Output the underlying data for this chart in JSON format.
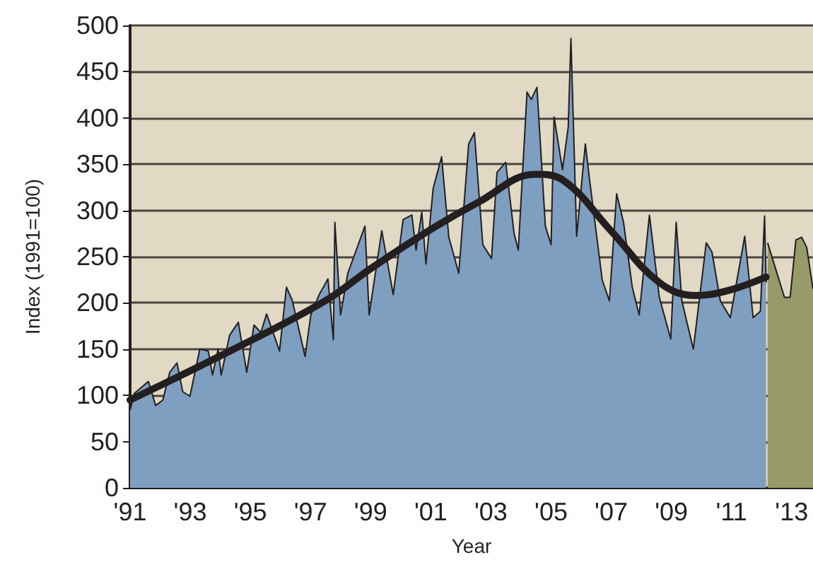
{
  "chart_data": {
    "type": "area",
    "xlabel": "Year",
    "ylabel": "Index (1991=100)",
    "xlim": [
      1991,
      2013.71
    ],
    "ylim": [
      0,
      500
    ],
    "xticks": [
      {
        "value": 1991,
        "label": "'91"
      },
      {
        "value": 1993,
        "label": "'93"
      },
      {
        "value": 1995,
        "label": "'95"
      },
      {
        "value": 1997,
        "label": "'97"
      },
      {
        "value": 1999,
        "label": "'99"
      },
      {
        "value": 2001,
        "label": "'01"
      },
      {
        "value": 2003,
        "label": "'03"
      },
      {
        "value": 2005,
        "label": "'05"
      },
      {
        "value": 2007,
        "label": "'07"
      },
      {
        "value": 2009,
        "label": "'09"
      },
      {
        "value": 2011,
        "label": "'11"
      },
      {
        "value": 2013,
        "label": "'13"
      }
    ],
    "yticks": [
      0,
      50,
      100,
      150,
      200,
      250,
      300,
      350,
      400,
      450,
      500
    ],
    "grid": "y",
    "marker": "none",
    "line_style": "solid",
    "series": [
      {
        "color": "#7f9fc0",
        "x": [
          1991,
          1991.14,
          1991.61,
          1991.85,
          1992.09,
          1992.32,
          1992.56,
          1992.75,
          1992.99,
          1993.32,
          1993.6,
          1993.74,
          1993.93,
          1994.03,
          1994.31,
          1994.6,
          1994.88,
          1995.12,
          1995.35,
          1995.54,
          1995.97,
          1996.2,
          1996.39,
          1996.82,
          1997.01,
          1997.29,
          1997.58,
          1997.76,
          1997.81,
          1998,
          1998.24,
          1998.81,
          1998.95,
          1999.37,
          1999.75,
          2000.08,
          2000.37,
          2000.51,
          2000.7,
          2000.84,
          2001.08,
          2001.36,
          2001.6,
          2001.93,
          2002.26,
          2002.45,
          2002.73,
          2003.02,
          2003.2,
          2003.49,
          2003.77,
          2003.91,
          2004.2,
          2004.34,
          2004.53,
          2004.81,
          2005,
          2005.1,
          2005.38,
          2005.57,
          2005.66,
          2005.85,
          2006.14,
          2006.28,
          2006.7,
          2006.94,
          2007.18,
          2007.41,
          2007.7,
          2007.93,
          2008.27,
          2008.6,
          2008.98,
          2009.16,
          2009.35,
          2009.73,
          2010.16,
          2010.35,
          2010.63,
          2010.96,
          2011.44,
          2011.72,
          2011.96,
          2012.1,
          2012.15
        ],
        "values": [
          84,
          102,
          115,
          89,
          95,
          125,
          135,
          104,
          99,
          150,
          148,
          122,
          150,
          122,
          165,
          179,
          125,
          176,
          168,
          188,
          148,
          217,
          203,
          142,
          187,
          209,
          226,
          160,
          287,
          187,
          232,
          283,
          187,
          278,
          209,
          290,
          295,
          257,
          298,
          242,
          324,
          358,
          271,
          232,
          372,
          384,
          263,
          248,
          341,
          352,
          275,
          257,
          428,
          420,
          433,
          283,
          263,
          401,
          344,
          390,
          486,
          272,
          372,
          333,
          225,
          202,
          318,
          287,
          217,
          187,
          295,
          206,
          161,
          287,
          202,
          150,
          265,
          255,
          202,
          184,
          272,
          184,
          191,
          294,
          222
        ]
      },
      {
        "type": "area",
        "color": "#979a69",
        "x": [
          2012.2,
          2012.76,
          2012.95,
          2013.14,
          2013.33,
          2013.5,
          2013.71
        ],
        "values": [
          265,
          206,
          206,
          268,
          271,
          260,
          215
        ]
      },
      {
        "type": "line",
        "color": "#231f20",
        "x": [
          1991,
          1994.45,
          1997.48,
          1999,
          2001.03,
          2002.59,
          2004.48,
          2005.43,
          2006.99,
          2008.6,
          2009.83,
          2010.96,
          2012.15
        ],
        "values": [
          95,
          150,
          202,
          237,
          280,
          309,
          339,
          332,
          278,
          222,
          208,
          214,
          228
        ]
      }
    ]
  }
}
